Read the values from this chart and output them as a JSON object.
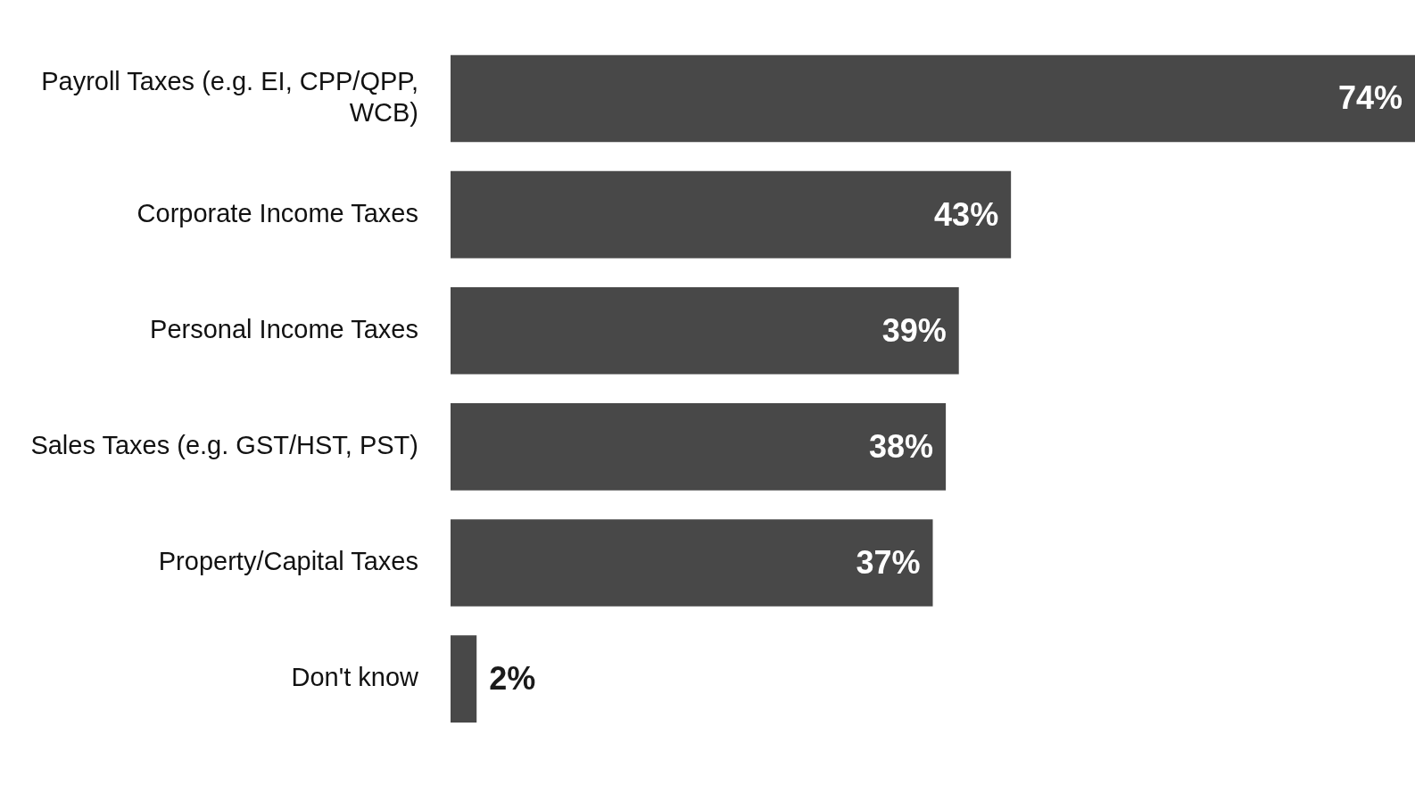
{
  "chart_data": {
    "type": "bar",
    "orientation": "horizontal",
    "categories": [
      "Payroll Taxes (e.g. EI, CPP/QPP, WCB)",
      "Corporate Income Taxes",
      "Personal Income Taxes",
      "Sales Taxes (e.g. GST/HST, PST)",
      "Property/Capital Taxes",
      "Don't know"
    ],
    "values": [
      74,
      43,
      39,
      38,
      37,
      2
    ],
    "value_labels": [
      "74%",
      "43%",
      "39%",
      "38%",
      "37%",
      "2%"
    ],
    "color": "#484848"
  }
}
